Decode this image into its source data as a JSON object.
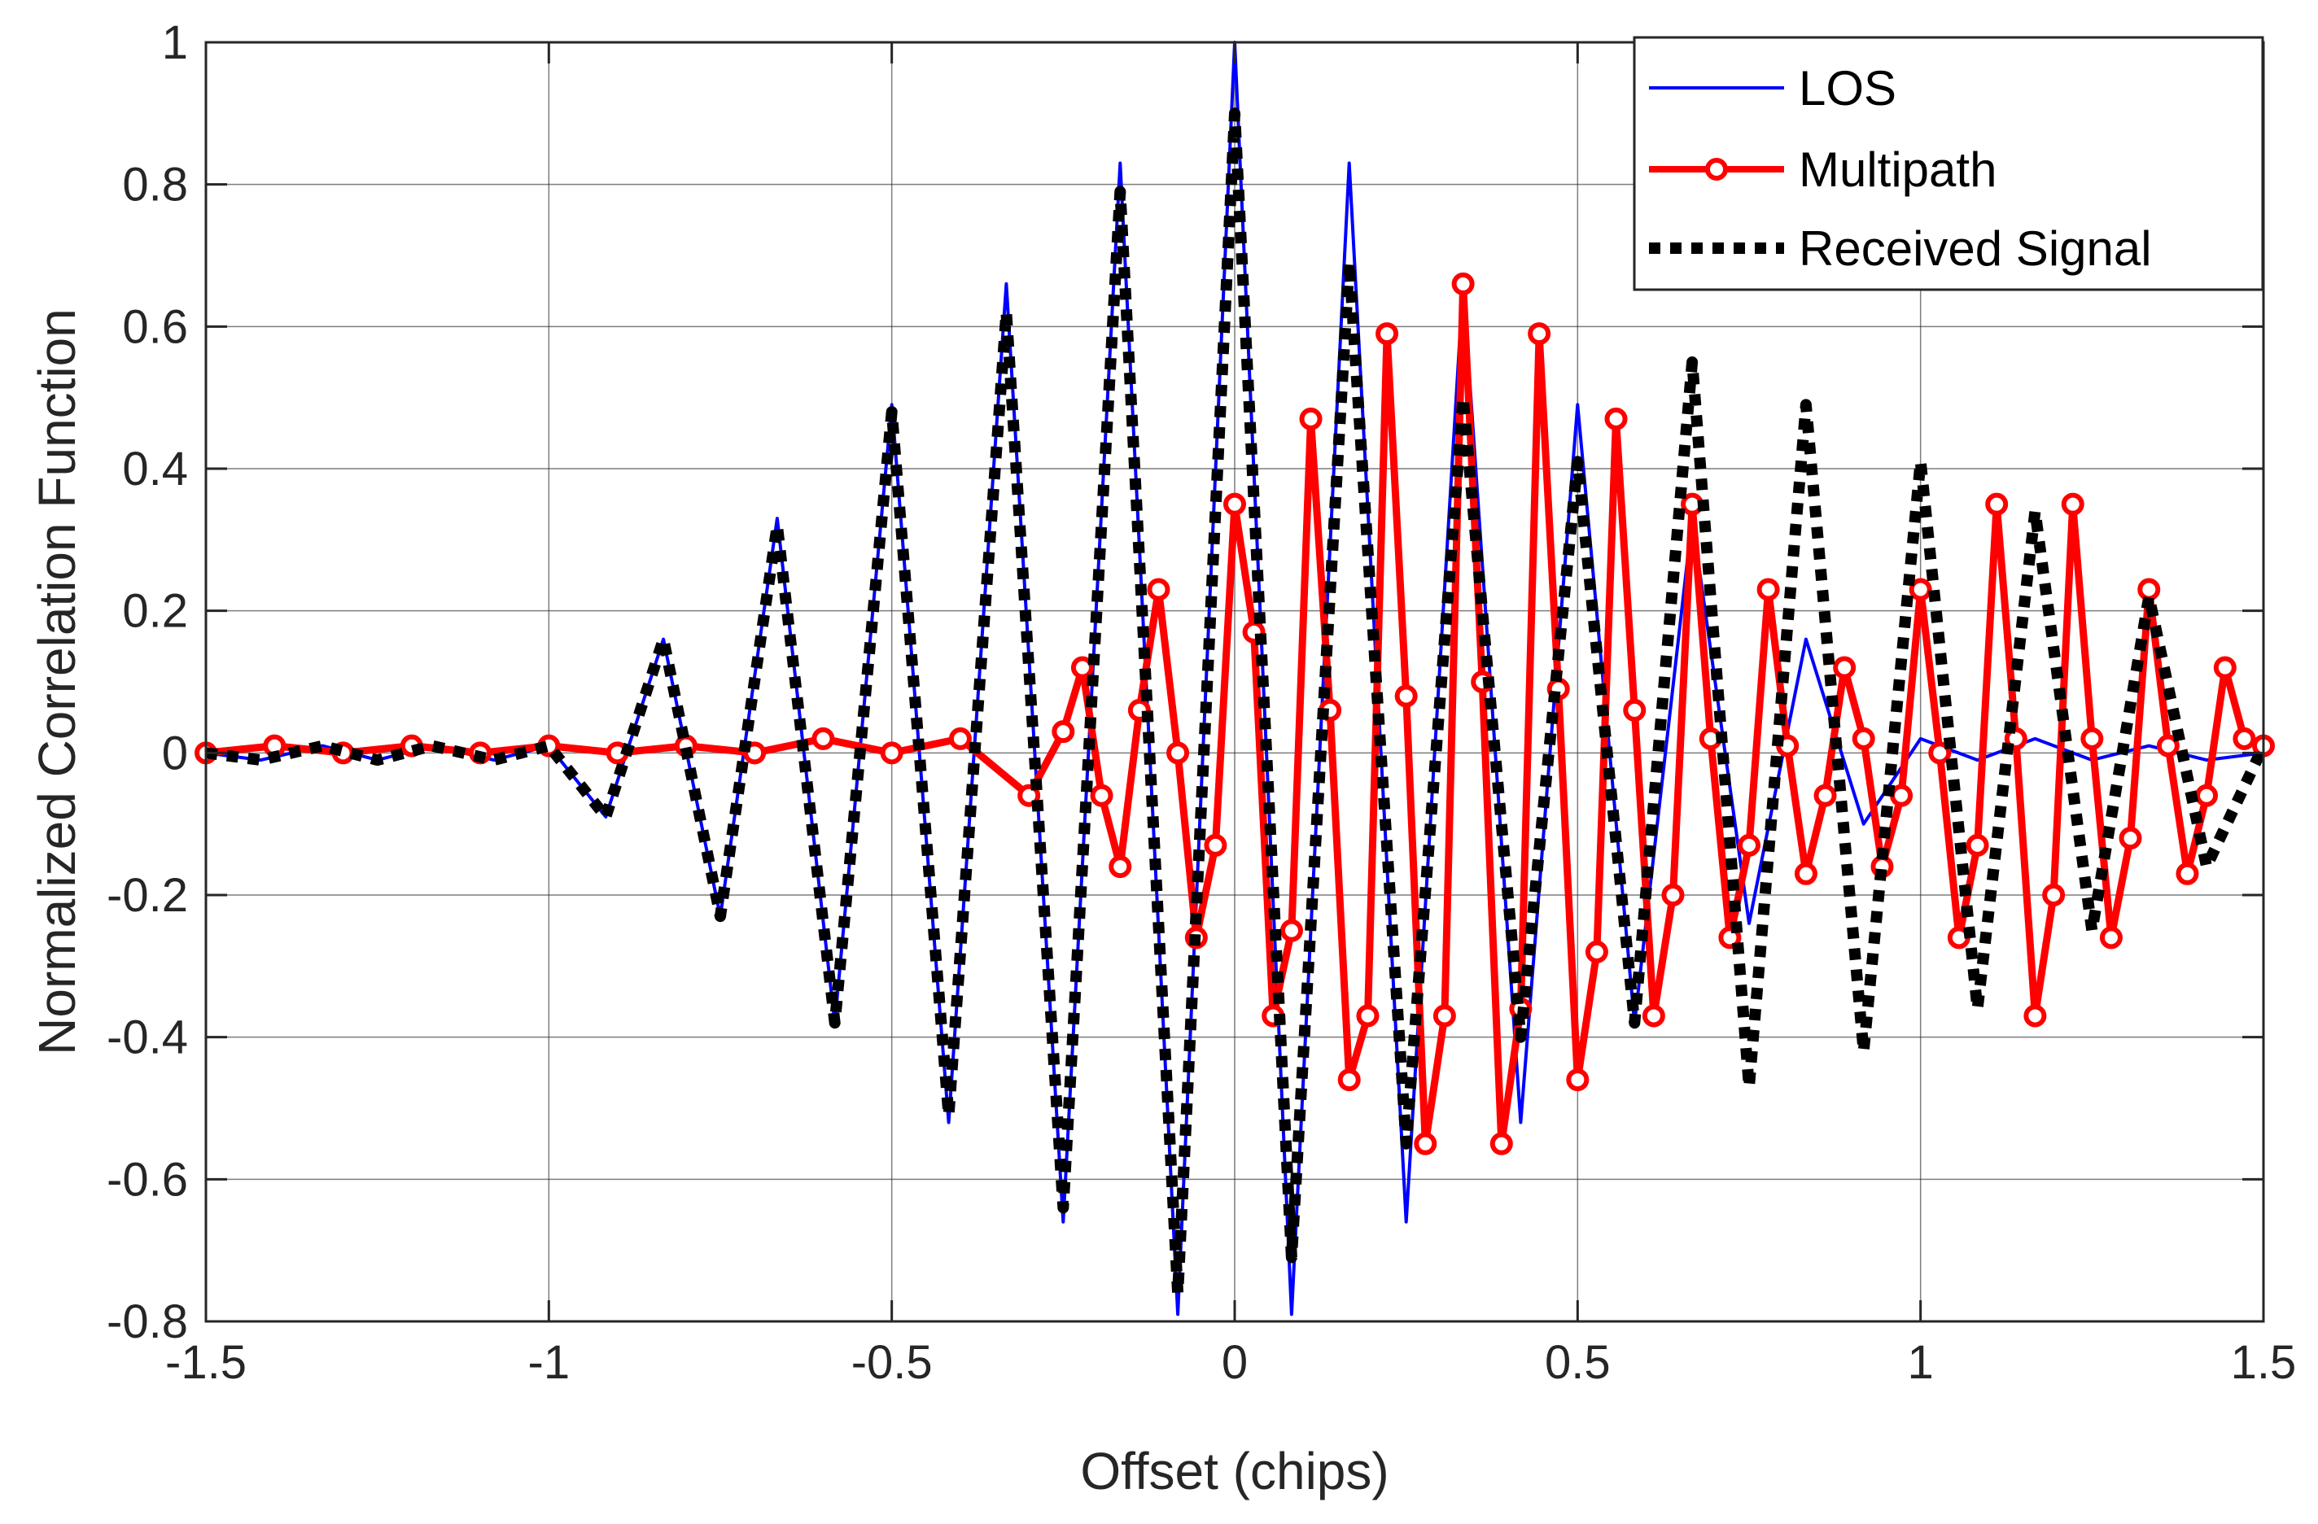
{
  "chart_data": {
    "type": "line",
    "title": "",
    "xlabel": "Offset (chips)",
    "ylabel": "Normalized Correlation Function",
    "xlim": [
      -1.5,
      1.5
    ],
    "ylim": [
      -0.8,
      1.0
    ],
    "x_ticks": [
      -1.5,
      -1,
      -0.5,
      0,
      0.5,
      1,
      1.5
    ],
    "x_tick_labels": [
      "-1.5",
      "-1",
      "-0.5",
      "0",
      "0.5",
      "1",
      "1.5"
    ],
    "y_ticks": [
      -0.8,
      -0.6,
      -0.4,
      -0.2,
      0,
      0.2,
      0.4,
      0.6,
      0.8,
      1
    ],
    "y_tick_labels": [
      "-0.8",
      "-0.6",
      "-0.4",
      "-0.2",
      "0",
      "0.2",
      "0.4",
      "0.6",
      "0.8",
      "1"
    ],
    "grid": true,
    "legend_position": "top-right",
    "series": [
      {
        "name": "LOS",
        "color": "#0000ff",
        "style": "solid-thin",
        "x": [
          -1.5,
          -1.42,
          -1.33,
          -1.25,
          -1.17,
          -1.08,
          -1.0,
          -0.917,
          -0.833,
          -0.75,
          -0.667,
          -0.583,
          -0.5,
          -0.417,
          -0.333,
          -0.25,
          -0.167,
          -0.083,
          0.0,
          0.083,
          0.167,
          0.25,
          0.333,
          0.417,
          0.5,
          0.583,
          0.667,
          0.75,
          0.833,
          0.917,
          1.0,
          1.083,
          1.167,
          1.25,
          1.333,
          1.417,
          1.5
        ],
        "y": [
          0.0,
          -0.01,
          0.01,
          -0.01,
          0.01,
          -0.01,
          0.01,
          -0.09,
          0.16,
          -0.23,
          0.33,
          -0.38,
          0.49,
          -0.52,
          0.66,
          -0.66,
          0.83,
          -0.79,
          1.0,
          -0.79,
          0.83,
          -0.66,
          0.66,
          -0.52,
          0.49,
          -0.38,
          0.33,
          -0.24,
          0.16,
          -0.1,
          0.02,
          -0.01,
          0.02,
          -0.01,
          0.01,
          -0.01,
          0.0
        ]
      },
      {
        "name": "Multipath",
        "color": "#ff0000",
        "style": "solid-circle-markers",
        "x": [
          -1.5,
          -1.4,
          -1.3,
          -1.2,
          -1.1,
          -1.0,
          -0.9,
          -0.8,
          -0.7,
          -0.6,
          -0.5,
          -0.4,
          -0.3,
          -0.25,
          -0.222,
          -0.194,
          -0.167,
          -0.139,
          -0.111,
          -0.083,
          -0.056,
          -0.028,
          0.0,
          0.028,
          0.056,
          0.083,
          0.111,
          0.139,
          0.167,
          0.194,
          0.222,
          0.25,
          0.278,
          0.306,
          0.333,
          0.361,
          0.389,
          0.417,
          0.444,
          0.472,
          0.5,
          0.528,
          0.556,
          0.583,
          0.611,
          0.639,
          0.667,
          0.694,
          0.722,
          0.75,
          0.778,
          0.806,
          0.833,
          0.861,
          0.889,
          0.917,
          0.944,
          0.972,
          1.0,
          1.028,
          1.056,
          1.083,
          1.111,
          1.139,
          1.167,
          1.194,
          1.222,
          1.25,
          1.278,
          1.306,
          1.333,
          1.361,
          1.389,
          1.417,
          1.444,
          1.472,
          1.5
        ],
        "y": [
          0.0,
          0.01,
          0.0,
          0.01,
          0.0,
          0.01,
          0.0,
          0.01,
          0.0,
          0.02,
          0.0,
          0.02,
          -0.06,
          0.03,
          0.12,
          -0.06,
          -0.16,
          0.06,
          0.23,
          0.0,
          -0.26,
          -0.13,
          0.35,
          0.17,
          -0.37,
          -0.25,
          0.47,
          0.06,
          -0.46,
          -0.37,
          0.59,
          0.08,
          -0.55,
          -0.37,
          0.66,
          0.1,
          -0.55,
          -0.36,
          0.59,
          0.09,
          -0.46,
          -0.28,
          0.47,
          0.06,
          -0.37,
          -0.2,
          0.35,
          0.02,
          -0.26,
          -0.13,
          0.23,
          0.01,
          -0.17,
          -0.06,
          0.12,
          0.02,
          -0.16,
          -0.06,
          0.23,
          0.0,
          -0.26,
          -0.13,
          0.35,
          0.02,
          -0.37,
          -0.2,
          0.35,
          0.02,
          -0.26,
          -0.12,
          0.23,
          0.01,
          -0.17,
          -0.06,
          0.12,
          0.02,
          0.01
        ]
      },
      {
        "name": "Received Signal",
        "color": "#000000",
        "style": "dotted-thick",
        "x": [
          -1.5,
          -1.42,
          -1.33,
          -1.25,
          -1.17,
          -1.08,
          -1.0,
          -0.917,
          -0.833,
          -0.75,
          -0.667,
          -0.583,
          -0.5,
          -0.417,
          -0.333,
          -0.25,
          -0.167,
          -0.083,
          0.0,
          0.083,
          0.167,
          0.25,
          0.333,
          0.417,
          0.5,
          0.583,
          0.667,
          0.75,
          0.833,
          0.917,
          1.0,
          1.083,
          1.167,
          1.25,
          1.333,
          1.417,
          1.5
        ],
        "y": [
          0.0,
          -0.01,
          0.01,
          -0.01,
          0.01,
          -0.01,
          0.01,
          -0.09,
          0.16,
          -0.23,
          0.32,
          -0.38,
          0.48,
          -0.51,
          0.62,
          -0.64,
          0.79,
          -0.76,
          0.9,
          -0.71,
          0.69,
          -0.55,
          0.5,
          -0.4,
          0.41,
          -0.38,
          0.55,
          -0.47,
          0.49,
          -0.42,
          0.41,
          -0.36,
          0.34,
          -0.25,
          0.22,
          -0.16,
          0.01
        ]
      }
    ]
  }
}
